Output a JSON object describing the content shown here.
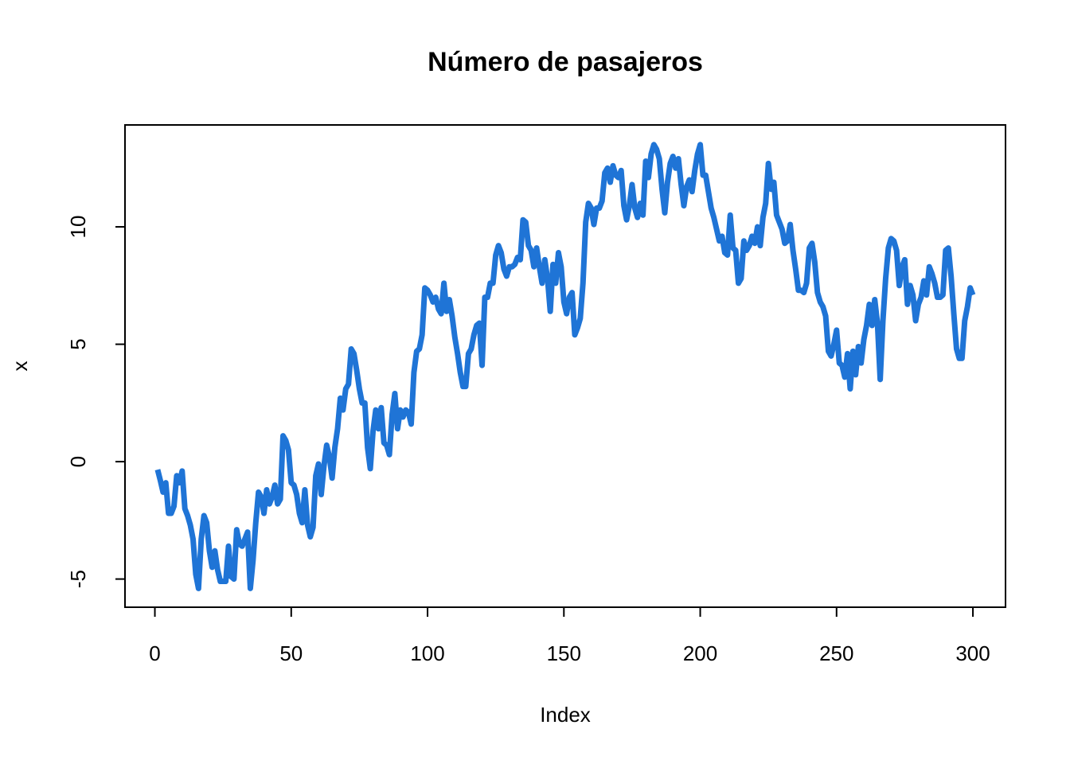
{
  "chart_data": {
    "type": "line",
    "title": "Número de pasajeros",
    "x_label": "Index",
    "y_label": "x",
    "color": "#1f74d6",
    "xlim": [
      -10.96,
      311.96
    ],
    "ylim": [
      -6.2,
      14.34
    ],
    "xticks": [
      0,
      50,
      100,
      150,
      200,
      250,
      300
    ],
    "yticks": [
      -5,
      0,
      5,
      10
    ],
    "x": [
      1,
      2,
      3,
      4,
      5,
      6,
      7,
      8,
      9,
      10,
      11,
      12,
      13,
      14,
      15,
      16,
      17,
      18,
      19,
      20,
      21,
      22,
      23,
      24,
      25,
      26,
      27,
      28,
      29,
      30,
      31,
      32,
      33,
      34,
      35,
      36,
      37,
      38,
      39,
      40,
      41,
      42,
      43,
      44,
      45,
      46,
      47,
      48,
      49,
      50,
      51,
      52,
      53,
      54,
      55,
      56,
      57,
      58,
      59,
      60,
      61,
      62,
      63,
      64,
      65,
      66,
      67,
      68,
      69,
      70,
      71,
      72,
      73,
      74,
      75,
      76,
      77,
      78,
      79,
      80,
      81,
      82,
      83,
      84,
      85,
      86,
      87,
      88,
      89,
      90,
      91,
      92,
      93,
      94,
      95,
      96,
      97,
      98,
      99,
      100,
      101,
      102,
      103,
      104,
      105,
      106,
      107,
      108,
      109,
      110,
      111,
      112,
      113,
      114,
      115,
      116,
      117,
      118,
      119,
      120,
      121,
      122,
      123,
      124,
      125,
      126,
      127,
      128,
      129,
      130,
      131,
      132,
      133,
      134,
      135,
      136,
      137,
      138,
      139,
      140,
      141,
      142,
      143,
      144,
      145,
      146,
      147,
      148,
      149,
      150,
      151,
      152,
      153,
      154,
      155,
      156,
      157,
      158,
      159,
      160,
      161,
      162,
      163,
      164,
      165,
      166,
      167,
      168,
      169,
      170,
      171,
      172,
      173,
      174,
      175,
      176,
      177,
      178,
      179,
      180,
      181,
      182,
      183,
      184,
      185,
      186,
      187,
      188,
      189,
      190,
      191,
      192,
      193,
      194,
      195,
      196,
      197,
      198,
      199,
      200,
      201,
      202,
      203,
      204,
      205,
      206,
      207,
      208,
      209,
      210,
      211,
      212,
      213,
      214,
      215,
      216,
      217,
      218,
      219,
      220,
      221,
      222,
      223,
      224,
      225,
      226,
      227,
      228,
      229,
      230,
      231,
      232,
      233,
      234,
      235,
      236,
      237,
      238,
      239,
      240,
      241,
      242,
      243,
      244,
      245,
      246,
      247,
      248,
      249,
      250,
      251,
      252,
      253,
      254,
      255,
      256,
      257,
      258,
      259,
      260,
      261,
      262,
      263,
      264,
      265,
      266,
      267,
      268,
      269,
      270,
      271,
      272,
      273,
      274,
      275,
      276,
      277,
      278,
      279,
      280,
      281,
      282,
      283,
      284,
      285,
      286,
      287,
      288,
      289,
      290,
      291,
      292,
      293,
      294,
      295,
      296,
      297,
      298,
      299,
      300
    ],
    "values": [
      -0.34,
      -0.8,
      -1.3,
      -0.9,
      -2.2,
      -2.2,
      -1.9,
      -0.6,
      -0.9,
      -0.4,
      -2.0,
      -2.3,
      -2.7,
      -3.3,
      -4.8,
      -5.4,
      -3.3,
      -2.3,
      -2.6,
      -3.8,
      -4.5,
      -3.8,
      -4.6,
      -5.1,
      -5.1,
      -5.1,
      -3.6,
      -4.9,
      -5.0,
      -2.9,
      -3.5,
      -3.6,
      -3.3,
      -3.0,
      -5.4,
      -4.2,
      -2.6,
      -1.3,
      -1.5,
      -2.2,
      -1.2,
      -1.8,
      -1.5,
      -1.0,
      -1.8,
      -1.6,
      1.1,
      0.9,
      0.5,
      -0.9,
      -1.0,
      -1.4,
      -2.2,
      -2.6,
      -1.2,
      -2.7,
      -3.2,
      -2.8,
      -0.6,
      -0.1,
      -1.4,
      -0.2,
      0.7,
      0.2,
      -0.7,
      0.6,
      1.4,
      2.7,
      2.2,
      3.1,
      3.3,
      4.8,
      4.6,
      3.9,
      3.1,
      2.5,
      2.5,
      0.6,
      -0.3,
      1.3,
      2.2,
      1.4,
      2.3,
      0.8,
      0.7,
      0.3,
      2.0,
      2.9,
      1.4,
      2.2,
      1.9,
      2.2,
      2.1,
      1.6,
      3.8,
      4.7,
      4.8,
      5.4,
      7.4,
      7.3,
      7.1,
      6.8,
      7.0,
      6.5,
      6.3,
      7.6,
      6.4,
      6.9,
      6.2,
      5.3,
      4.6,
      3.8,
      3.2,
      3.2,
      4.6,
      4.8,
      5.4,
      5.8,
      5.9,
      4.1,
      7.0,
      7.0,
      7.6,
      7.6,
      8.8,
      9.2,
      8.9,
      8.2,
      7.9,
      8.3,
      8.3,
      8.4,
      8.7,
      8.6,
      10.3,
      10.2,
      9.2,
      9.0,
      8.3,
      9.1,
      8.3,
      7.6,
      8.6,
      7.8,
      6.4,
      8.4,
      7.6,
      8.9,
      8.3,
      6.8,
      6.3,
      7.0,
      7.2,
      5.4,
      5.7,
      6.1,
      7.6,
      10.2,
      11.0,
      10.8,
      10.1,
      10.8,
      10.8,
      11.1,
      12.3,
      12.5,
      11.9,
      12.6,
      12.2,
      12.1,
      12.4,
      10.9,
      10.3,
      10.9,
      11.8,
      10.8,
      10.4,
      11.0,
      10.5,
      12.8,
      12.1,
      13.1,
      13.5,
      13.3,
      12.9,
      11.6,
      10.6,
      11.9,
      12.7,
      13.0,
      12.5,
      12.9,
      11.8,
      10.9,
      11.7,
      12.0,
      11.5,
      12.4,
      13.1,
      13.5,
      12.2,
      12.2,
      11.5,
      10.8,
      10.4,
      9.9,
      9.4,
      9.6,
      8.9,
      8.8,
      10.5,
      9.1,
      9.0,
      7.6,
      7.8,
      9.4,
      9.0,
      9.2,
      9.6,
      9.3,
      10.0,
      9.2,
      10.4,
      11.0,
      12.7,
      11.6,
      11.9,
      10.5,
      10.2,
      9.9,
      9.3,
      9.4,
      10.1,
      9.0,
      8.2,
      7.3,
      7.3,
      7.2,
      7.6,
      9.1,
      9.3,
      8.5,
      7.2,
      6.8,
      6.6,
      6.2,
      4.7,
      4.5,
      5.0,
      5.6,
      4.2,
      4.1,
      3.6,
      4.6,
      3.1,
      4.7,
      3.7,
      4.9,
      4.2,
      5.2,
      5.8,
      6.7,
      5.8,
      6.9,
      5.9,
      3.5,
      6.0,
      7.8,
      9.1,
      9.5,
      9.4,
      9.0,
      7.5,
      8.3,
      8.6,
      6.7,
      7.5,
      7.1,
      6.0,
      6.7,
      7.0,
      7.7,
      7.1,
      8.3,
      8.0,
      7.6,
      7.0,
      7.0,
      7.1,
      9.0,
      9.1,
      7.9,
      6.3,
      4.8,
      4.4,
      4.4,
      6.0,
      6.6,
      7.4,
      7.1
    ]
  }
}
